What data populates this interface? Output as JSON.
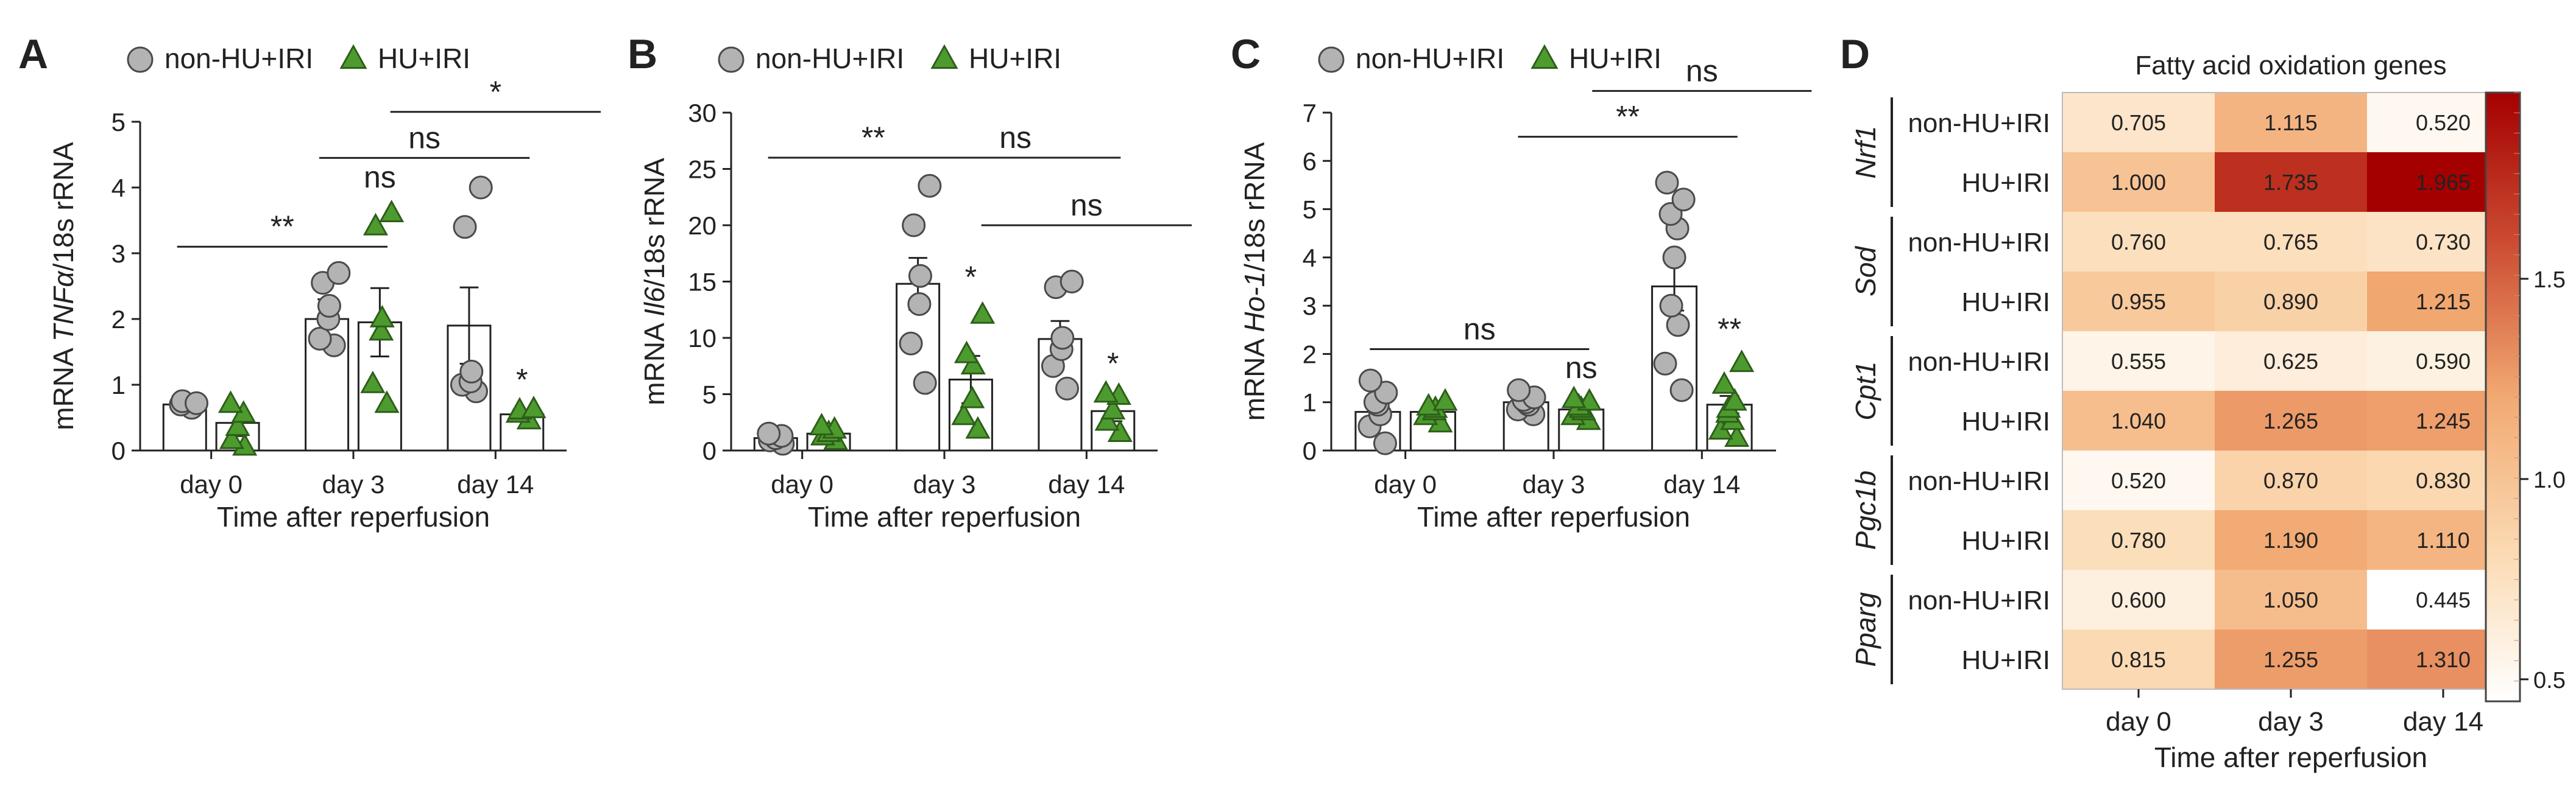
{
  "figure": {
    "background": "#ffffff"
  },
  "panels": [
    {
      "letter": "A",
      "kind": "bar_scatter",
      "ylabel_pre": "mRNA ",
      "ylabel_gene": "TNFα",
      "ylabel_post": "/18s rRNA"
    },
    {
      "letter": "B",
      "kind": "bar_scatter",
      "ylabel_pre": "mRNA ",
      "ylabel_gene": "Il6",
      "ylabel_post": "/18s rRNA"
    },
    {
      "letter": "C",
      "kind": "bar_scatter",
      "ylabel_pre": "mRNA ",
      "ylabel_gene": "Ho-1",
      "ylabel_post": "/18s rRNA"
    },
    {
      "letter": "D",
      "kind": "heatmap"
    }
  ],
  "legend": {
    "series": [
      {
        "name": "non-HU+IRI",
        "marker": "circle",
        "color": "#b3b3b3"
      },
      {
        "name": "HU+IRI",
        "marker": "triangle",
        "color": "#4d9b2e"
      }
    ]
  },
  "chart_data": [
    {
      "panel": "A",
      "type": "bar",
      "categories": [
        "day 0",
        "day 3",
        "day 14"
      ],
      "xlabel": "Time after reperfusion",
      "ylabel": "mRNA TNFα/18s rRNA",
      "ylim": [
        0,
        5
      ],
      "yticks": [
        0,
        1,
        2,
        3,
        4,
        5
      ],
      "series": [
        {
          "name": "non-HU+IRI",
          "values": [
            0.7,
            2.0,
            1.9
          ],
          "errors": [
            0.06,
            0.3,
            0.58
          ],
          "points": [
            [
              0.65,
              0.7,
              0.75,
              0.72
            ],
            [
              1.6,
              1.7,
              2.0,
              2.2,
              2.55,
              2.7
            ],
            [
              0.9,
              1.0,
              1.05,
              1.2,
              3.4,
              4.0
            ]
          ]
        },
        {
          "name": "HU+IRI",
          "values": [
            0.42,
            1.95,
            0.55
          ],
          "errors": [
            0.2,
            0.52,
            0.07
          ],
          "points": [
            [
              0.05,
              0.15,
              0.35,
              0.55,
              0.7
            ],
            [
              0.7,
              1.0,
              1.8,
              2.0,
              3.4,
              3.6
            ],
            [
              0.45,
              0.55,
              0.6,
              0.62
            ]
          ]
        }
      ],
      "stars": [
        {
          "series": 1,
          "category": 1,
          "text": "ns",
          "y": 4.0
        },
        {
          "series": 1,
          "category": 2,
          "text": "*",
          "y": 0.92
        }
      ],
      "brackets": [
        {
          "from": 0,
          "to": 1,
          "y": 3.1,
          "text": "**"
        },
        {
          "from": 1,
          "to": 2,
          "y": 4.45,
          "text": "ns"
        },
        {
          "from": 1.5,
          "to": 2.5,
          "y": 5.15,
          "text": "*"
        }
      ]
    },
    {
      "panel": "B",
      "type": "bar",
      "categories": [
        "day 0",
        "day 3",
        "day 14"
      ],
      "xlabel": "Time after reperfusion",
      "ylabel": "mRNA Il6/18s rRNA",
      "ylim": [
        0,
        30
      ],
      "yticks": [
        0,
        5,
        10,
        15,
        20,
        25,
        30
      ],
      "series": [
        {
          "name": "non-HU+IRI",
          "values": [
            1.1,
            14.8,
            9.9
          ],
          "errors": [
            0.3,
            2.3,
            1.6
          ],
          "points": [
            [
              0.6,
              0.9,
              1.1,
              1.3,
              1.5
            ],
            [
              6.0,
              9.5,
              13.0,
              15.5,
              20.0,
              23.5
            ],
            [
              5.5,
              7.5,
              9.0,
              10.0,
              14.5,
              15.0
            ]
          ]
        },
        {
          "name": "HU+IRI",
          "values": [
            1.5,
            6.3,
            3.5
          ],
          "errors": [
            0.3,
            2.1,
            0.9
          ],
          "points": [
            [
              0.8,
              1.2,
              1.5,
              1.8,
              2.1
            ],
            [
              1.8,
              3.0,
              4.5,
              7.5,
              8.5,
              12.0
            ],
            [
              1.5,
              2.5,
              3.5,
              4.8,
              5.0
            ]
          ]
        }
      ],
      "stars": [
        {
          "series": 1,
          "category": 1,
          "text": "*",
          "y": 14.5
        },
        {
          "series": 1,
          "category": 2,
          "text": "*",
          "y": 6.8
        }
      ],
      "brackets": [
        {
          "from": 0,
          "to": 1,
          "y": 26.0,
          "text": "**"
        },
        {
          "from": 1,
          "to": 2,
          "y": 26.0,
          "text": "ns"
        },
        {
          "from": 1.5,
          "to": 2.5,
          "y": 20.0,
          "text": "ns"
        }
      ]
    },
    {
      "panel": "C",
      "type": "bar",
      "categories": [
        "day 0",
        "day 3",
        "day 14"
      ],
      "xlabel": "Time after reperfusion",
      "ylabel": "mRNA Ho-1/18s rRNA",
      "ylim": [
        0,
        7
      ],
      "yticks": [
        0,
        1,
        2,
        3,
        4,
        5,
        6,
        7
      ],
      "series": [
        {
          "name": "non-HU+IRI",
          "values": [
            0.8,
            1.0,
            3.4
          ],
          "errors": [
            0.15,
            0.07,
            0.5
          ],
          "points": [
            [
              0.15,
              0.5,
              0.75,
              0.95,
              1.0,
              1.2,
              1.45
            ],
            [
              0.75,
              0.85,
              0.95,
              1.0,
              1.05,
              1.1,
              1.25
            ],
            [
              1.25,
              1.8,
              2.6,
              3.0,
              4.0,
              4.6,
              4.9,
              5.2,
              5.55
            ]
          ]
        },
        {
          "name": "HU+IRI",
          "values": [
            0.8,
            0.85,
            0.95
          ],
          "errors": [
            0.06,
            0.05,
            0.18
          ],
          "points": [
            [
              0.55,
              0.7,
              0.8,
              0.85,
              0.9,
              1.0
            ],
            [
              0.6,
              0.7,
              0.8,
              0.85,
              0.9,
              1.0,
              1.05
            ],
            [
              0.25,
              0.4,
              0.6,
              0.75,
              0.85,
              1.0,
              1.35,
              1.8
            ]
          ]
        }
      ],
      "stars": [
        {
          "series": 1,
          "category": 1,
          "text": "ns",
          "y": 1.5
        },
        {
          "series": 1,
          "category": 2,
          "text": "**",
          "y": 2.3
        }
      ],
      "brackets": [
        {
          "from": 0,
          "to": 1,
          "y": 2.1,
          "text": "ns"
        },
        {
          "from": 1,
          "to": 2,
          "y": 6.5,
          "text": "**"
        },
        {
          "from": 1.5,
          "to": 2.5,
          "y": 7.45,
          "text": "ns"
        }
      ]
    },
    {
      "panel": "D",
      "type": "heatmap",
      "title": "Fatty acid oxidation genes",
      "xlabel": "Time after reperfusion",
      "columns": [
        "day 0",
        "day 3",
        "day 14"
      ],
      "groups": [
        {
          "gene": "Nrf1",
          "rows": [
            {
              "label": "non-HU+IRI",
              "values": [
                0.705,
                1.115,
                0.52
              ],
              "labels": [
                "0.705",
                "1.115",
                "0.520"
              ]
            },
            {
              "label": "HU+IRI",
              "values": [
                1.0,
                1.735,
                1.965
              ],
              "labels": [
                "1.000",
                "1.735",
                "1.965"
              ]
            }
          ]
        },
        {
          "gene": "Sod",
          "rows": [
            {
              "label": "non-HU+IRI",
              "values": [
                0.76,
                0.765,
                0.73
              ],
              "labels": [
                "0.760",
                "0.765",
                "0.730"
              ]
            },
            {
              "label": "HU+IRI",
              "values": [
                0.955,
                0.89,
                1.215
              ],
              "labels": [
                "0.955",
                "0.890",
                "1.215"
              ]
            }
          ]
        },
        {
          "gene": "Cpt1",
          "rows": [
            {
              "label": "non-HU+IRI",
              "values": [
                0.555,
                0.625,
                0.59
              ],
              "labels": [
                "0.555",
                "0.625",
                "0.590"
              ]
            },
            {
              "label": "HU+IRI",
              "values": [
                1.04,
                1.265,
                1.245
              ],
              "labels": [
                "1.040",
                "1.265",
                "1.245"
              ]
            }
          ]
        },
        {
          "gene": "Pgc1b",
          "rows": [
            {
              "label": "non-HU+IRI",
              "values": [
                0.52,
                0.87,
                0.83
              ],
              "labels": [
                "0.520",
                "0.870",
                "0.830"
              ]
            },
            {
              "label": "HU+IRI",
              "values": [
                0.78,
                1.19,
                1.11
              ],
              "labels": [
                "0.780",
                "1.190",
                "1.110"
              ]
            }
          ]
        },
        {
          "gene": "Pparg",
          "rows": [
            {
              "label": "non-HU+IRI",
              "values": [
                0.6,
                1.05,
                0.445
              ],
              "labels": [
                "0.600",
                "1.050",
                "0.445"
              ]
            },
            {
              "label": "HU+IRI",
              "values": [
                0.815,
                1.255,
                1.31
              ],
              "labels": [
                "0.815",
                "1.255",
                "1.310"
              ]
            }
          ]
        }
      ],
      "colorbar": {
        "min": 0.445,
        "max": 1.965,
        "ticks": [
          0.5,
          1.0,
          1.5
        ],
        "tick_labels": [
          "0.5",
          "1.0",
          "1.5"
        ],
        "colors": [
          "#ffffff",
          "#fbd9b1",
          "#f2a972",
          "#cc4d33",
          "#a50000"
        ]
      }
    }
  ]
}
